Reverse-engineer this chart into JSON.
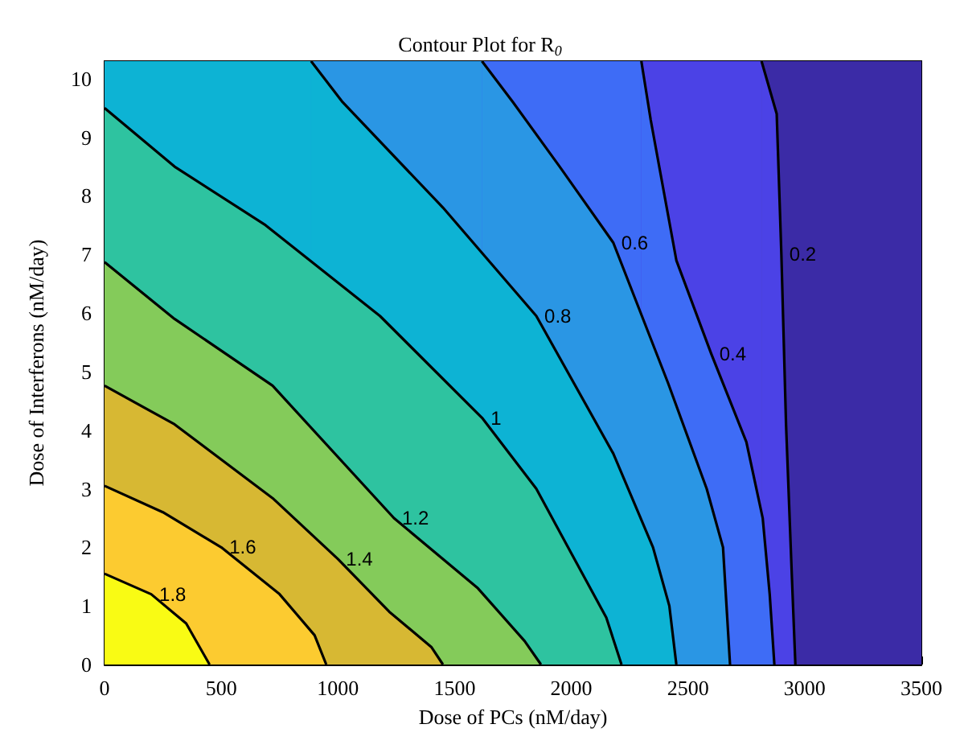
{
  "chart_data": {
    "type": "area",
    "title": "Contour Plot for R$_{0}$",
    "xlabel": "Dose of PCs (nM/day)",
    "ylabel": "Dose of Interferons (nM/day)",
    "xlim": [
      0,
      3500
    ],
    "ylim": [
      0,
      10.3
    ],
    "xticks": [
      0,
      500,
      1000,
      1500,
      2000,
      2500,
      3000,
      3500
    ],
    "yticks": [
      0,
      1,
      2,
      3,
      4,
      5,
      6,
      7,
      8,
      9,
      10
    ],
    "bands": [
      {
        "axis": "x",
        "from": 0,
        "to": 2815,
        "color": "#4b42e6"
      },
      {
        "axis": "x",
        "from": 0,
        "to": 2300,
        "color": "#3e6cf6"
      },
      {
        "axis": "x",
        "from": 0,
        "to": 1617,
        "color": "#2a96e4"
      },
      {
        "axis": "x",
        "from": 0,
        "to": 885,
        "color": "#0db3d4"
      },
      {
        "axis": "x",
        "from": 2815,
        "to": 3500,
        "color": "#3b2ba6"
      }
    ],
    "series": [
      {
        "name": "0.2",
        "color": "#4b42e6",
        "x": [
          2815,
          2880,
          2900,
          2920,
          2945,
          2960
        ],
        "values": [
          10.3,
          9.4,
          7.0,
          4.1,
          1.5,
          0
        ]
      },
      {
        "name": "0.4",
        "color": "#3e6cf6",
        "x": [
          2300,
          2340,
          2450,
          2600,
          2750,
          2820,
          2850,
          2870
        ],
        "values": [
          10.3,
          9.3,
          6.9,
          5.3,
          3.8,
          2.5,
          1.2,
          0
        ]
      },
      {
        "name": "0.6",
        "color": "#2a96e4",
        "x": [
          1617,
          1750,
          1950,
          2180,
          2415,
          2580,
          2650,
          2680
        ],
        "values": [
          10.3,
          9.6,
          8.5,
          7.2,
          4.8,
          3.0,
          2.0,
          0
        ]
      },
      {
        "name": "0.8",
        "color": "#0db3d4",
        "x": [
          885,
          1020,
          1450,
          1850,
          2180,
          2350,
          2420,
          2450
        ],
        "values": [
          10.3,
          9.6,
          7.8,
          5.95,
          3.6,
          2.0,
          1.0,
          0
        ]
      },
      {
        "name": "1",
        "color": "#2ec3a0",
        "x": [
          0,
          300,
          690,
          1180,
          1620,
          1850,
          2000,
          2150,
          2215
        ],
        "values": [
          9.5,
          8.5,
          7.5,
          5.95,
          4.2,
          3.0,
          1.9,
          0.8,
          0
        ]
      },
      {
        "name": "1.2",
        "color": "#84cb5a",
        "x": [
          0,
          300,
          720,
          1240,
          1600,
          1800,
          1870
        ],
        "values": [
          6.87,
          5.9,
          4.76,
          2.5,
          1.3,
          0.4,
          0
        ]
      },
      {
        "name": "1.4",
        "color": "#d7b833",
        "x": [
          0,
          300,
          720,
          1000,
          1220,
          1400,
          1450
        ],
        "values": [
          4.76,
          4.1,
          2.84,
          1.8,
          0.9,
          0.3,
          0
        ]
      },
      {
        "name": "1.6",
        "color": "#fccb30",
        "x": [
          0,
          250,
          500,
          750,
          900,
          950
        ],
        "values": [
          3.05,
          2.6,
          2.0,
          1.2,
          0.5,
          0
        ]
      },
      {
        "name": "1.8",
        "color": "#f9fb14",
        "x": [
          0,
          200,
          350,
          450
        ],
        "values": [
          1.55,
          1.2,
          0.7,
          0
        ]
      }
    ]
  }
}
